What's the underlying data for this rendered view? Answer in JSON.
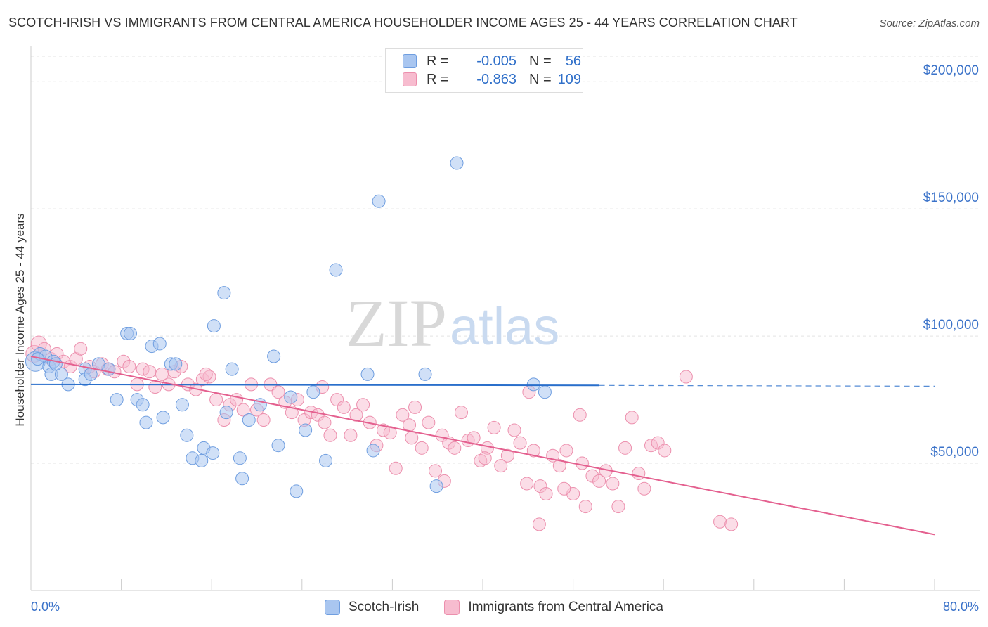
{
  "header": {
    "title": "SCOTCH-IRISH VS IMMIGRANTS FROM CENTRAL AMERICA HOUSEHOLDER INCOME AGES 25 - 44 YEARS CORRELATION CHART",
    "source": "Source: ZipAtlas.com"
  },
  "watermark": {
    "zip": "ZIP",
    "atlas": "atlas"
  },
  "legend": {
    "r_label": "R =",
    "n_label": "N =",
    "rows": [
      {
        "r": "-0.005",
        "n": "56"
      },
      {
        "r": "-0.863",
        "n": "109"
      }
    ]
  },
  "bottom_legend": [
    "Scotch-Irish",
    "Immigrants from Central America"
  ],
  "chart_data": {
    "type": "scatter",
    "ylabel": "Householder Income Ages 25 - 44 years",
    "xlim": [
      0,
      80
    ],
    "ylim": [
      0,
      210000
    ],
    "x_tick_labels": [
      "0.0%",
      "80.0%"
    ],
    "x_tick_values": [
      0,
      8,
      16,
      24,
      32,
      40,
      48,
      56,
      64,
      72,
      80
    ],
    "y_ticks": [
      {
        "value": 50000,
        "label": "$50,000"
      },
      {
        "value": 100000,
        "label": "$100,000"
      },
      {
        "value": 150000,
        "label": "$150,000"
      },
      {
        "value": 200000,
        "label": "$200,000"
      }
    ],
    "grid": true,
    "colors": {
      "series1_fill": "#a9c6f0",
      "series1_stroke": "#6f9ee0",
      "series1_line": "#2a6fcb",
      "series2_fill": "#f7bccf",
      "series2_stroke": "#ec8fad",
      "series2_line": "#e4608f",
      "tick_label": "#3a72c9"
    },
    "series": [
      {
        "name": "Scotch-Irish",
        "trend": {
          "x": [
            0,
            50.3
          ],
          "y": [
            81000,
            80600
          ],
          "dash_to": 80,
          "dash_y": 80300
        },
        "points": [
          [
            0.4,
            90000,
            14
          ],
          [
            0.8,
            93000,
            9
          ],
          [
            1.3,
            92000,
            9
          ],
          [
            1.6,
            88000,
            9
          ],
          [
            1.8,
            85000,
            9
          ],
          [
            2.0,
            90000,
            9
          ],
          [
            2.7,
            85000,
            9
          ],
          [
            3.3,
            81000,
            9
          ],
          [
            4.8,
            87000,
            9
          ],
          [
            4.8,
            83000,
            9
          ],
          [
            5.3,
            85000,
            9
          ],
          [
            6.0,
            89000,
            9
          ],
          [
            6.9,
            87000,
            9
          ],
          [
            7.6,
            75000,
            9
          ],
          [
            8.5,
            101000,
            9
          ],
          [
            8.8,
            101000,
            9
          ],
          [
            9.4,
            75000,
            9
          ],
          [
            9.9,
            73000,
            9
          ],
          [
            10.2,
            66000,
            9
          ],
          [
            10.7,
            96000,
            9
          ],
          [
            11.4,
            97000,
            9
          ],
          [
            11.7,
            68000,
            9
          ],
          [
            12.4,
            89000,
            9
          ],
          [
            12.8,
            89000,
            9
          ],
          [
            13.4,
            73000,
            9
          ],
          [
            13.8,
            61000,
            9
          ],
          [
            14.3,
            52000,
            9
          ],
          [
            15.1,
            51000,
            9
          ],
          [
            15.3,
            56000,
            9
          ],
          [
            16.1,
            54000,
            9
          ],
          [
            16.2,
            104000,
            9
          ],
          [
            17.1,
            117000,
            9
          ],
          [
            17.3,
            70000,
            9
          ],
          [
            17.8,
            87000,
            9
          ],
          [
            18.5,
            52000,
            9
          ],
          [
            18.7,
            44000,
            9
          ],
          [
            19.3,
            67000,
            9
          ],
          [
            20.3,
            73000,
            9
          ],
          [
            21.5,
            92000,
            9
          ],
          [
            21.9,
            57000,
            9
          ],
          [
            23.0,
            76000,
            9
          ],
          [
            23.5,
            39000,
            9
          ],
          [
            24.3,
            63000,
            9
          ],
          [
            25.0,
            78000,
            9
          ],
          [
            26.1,
            51000,
            9
          ],
          [
            27.0,
            126000,
            9
          ],
          [
            29.8,
            85000,
            9
          ],
          [
            30.3,
            55000,
            9
          ],
          [
            30.8,
            153000,
            9
          ],
          [
            34.9,
            85000,
            9
          ],
          [
            35.9,
            41000,
            9
          ],
          [
            37.7,
            168000,
            9
          ],
          [
            44.5,
            81000,
            9
          ],
          [
            45.5,
            78000,
            9
          ],
          [
            0.6,
            91000,
            9
          ],
          [
            2.2,
            89000,
            9
          ]
        ]
      },
      {
        "name": "Immigrants from Central America",
        "trend": {
          "x": [
            0,
            80
          ],
          "y": [
            92000,
            22000
          ]
        },
        "points": [
          [
            0.3,
            93000,
            12
          ],
          [
            0.7,
            97000,
            11
          ],
          [
            1.2,
            95000,
            9
          ],
          [
            1.8,
            91000,
            9
          ],
          [
            2.3,
            93000,
            9
          ],
          [
            2.9,
            90000,
            9
          ],
          [
            3.5,
            88000,
            9
          ],
          [
            4.0,
            91000,
            9
          ],
          [
            4.4,
            95000,
            9
          ],
          [
            5.2,
            88000,
            9
          ],
          [
            5.6,
            86000,
            9
          ],
          [
            6.3,
            89000,
            9
          ],
          [
            6.8,
            87000,
            9
          ],
          [
            7.4,
            86000,
            9
          ],
          [
            8.2,
            90000,
            9
          ],
          [
            8.7,
            88000,
            9
          ],
          [
            9.4,
            81000,
            9
          ],
          [
            9.9,
            87000,
            9
          ],
          [
            10.5,
            86000,
            9
          ],
          [
            11.0,
            80000,
            9
          ],
          [
            11.6,
            85000,
            9
          ],
          [
            12.2,
            81000,
            9
          ],
          [
            12.7,
            86000,
            9
          ],
          [
            13.3,
            88000,
            9
          ],
          [
            13.9,
            81000,
            9
          ],
          [
            14.6,
            79000,
            9
          ],
          [
            15.2,
            83000,
            9
          ],
          [
            15.8,
            84000,
            9
          ],
          [
            16.4,
            75000,
            9
          ],
          [
            17.1,
            67000,
            9
          ],
          [
            17.6,
            73000,
            9
          ],
          [
            18.2,
            75000,
            9
          ],
          [
            18.8,
            71000,
            9
          ],
          [
            19.5,
            81000,
            9
          ],
          [
            20.0,
            71000,
            9
          ],
          [
            20.6,
            67000,
            9
          ],
          [
            21.2,
            81000,
            9
          ],
          [
            21.9,
            78000,
            9
          ],
          [
            22.5,
            74000,
            9
          ],
          [
            23.1,
            70000,
            9
          ],
          [
            23.6,
            75000,
            9
          ],
          [
            24.2,
            67000,
            9
          ],
          [
            24.8,
            70000,
            9
          ],
          [
            25.4,
            69000,
            9
          ],
          [
            26.0,
            66000,
            9
          ],
          [
            26.5,
            61000,
            9
          ],
          [
            27.1,
            75000,
            9
          ],
          [
            27.7,
            72000,
            9
          ],
          [
            28.3,
            61000,
            9
          ],
          [
            28.8,
            69000,
            9
          ],
          [
            29.4,
            73000,
            9
          ],
          [
            30.0,
            66000,
            9
          ],
          [
            30.6,
            57000,
            9
          ],
          [
            31.2,
            63000,
            9
          ],
          [
            31.8,
            62000,
            9
          ],
          [
            32.3,
            48000,
            9
          ],
          [
            32.9,
            69000,
            9
          ],
          [
            33.5,
            65000,
            9
          ],
          [
            34.0,
            72000,
            9
          ],
          [
            34.6,
            56000,
            9
          ],
          [
            35.2,
            66000,
            9
          ],
          [
            35.8,
            47000,
            9
          ],
          [
            36.4,
            61000,
            9
          ],
          [
            37.0,
            58000,
            9
          ],
          [
            37.5,
            56000,
            9
          ],
          [
            38.1,
            70000,
            9
          ],
          [
            38.7,
            59000,
            9
          ],
          [
            39.2,
            60000,
            9
          ],
          [
            39.8,
            51000,
            9
          ],
          [
            40.4,
            56000,
            9
          ],
          [
            41.0,
            64000,
            9
          ],
          [
            41.6,
            49000,
            9
          ],
          [
            42.2,
            53000,
            9
          ],
          [
            42.8,
            63000,
            9
          ],
          [
            43.3,
            58000,
            9
          ],
          [
            43.9,
            42000,
            9
          ],
          [
            44.5,
            55000,
            9
          ],
          [
            45.1,
            41000,
            9
          ],
          [
            45.6,
            38000,
            9
          ],
          [
            46.2,
            53000,
            9
          ],
          [
            46.8,
            49000,
            9
          ],
          [
            47.4,
            55000,
            9
          ],
          [
            48.0,
            38000,
            9
          ],
          [
            48.6,
            69000,
            9
          ],
          [
            49.1,
            33000,
            9
          ],
          [
            49.7,
            45000,
            9
          ],
          [
            50.3,
            43000,
            9
          ],
          [
            50.9,
            47000,
            9
          ],
          [
            51.5,
            42000,
            9
          ],
          [
            52.0,
            33000,
            9
          ],
          [
            52.6,
            56000,
            9
          ],
          [
            53.2,
            68000,
            9
          ],
          [
            53.8,
            46000,
            9
          ],
          [
            54.3,
            40000,
            9
          ],
          [
            54.9,
            57000,
            9
          ],
          [
            55.5,
            58000,
            9
          ],
          [
            56.1,
            55000,
            9
          ],
          [
            58.0,
            84000,
            9
          ],
          [
            61.0,
            27000,
            9
          ],
          [
            62.0,
            26000,
            9
          ],
          [
            15.5,
            85000,
            9
          ],
          [
            25.8,
            80000,
            9
          ],
          [
            33.7,
            60000,
            9
          ],
          [
            40.2,
            52000,
            9
          ],
          [
            44.1,
            78000,
            9
          ],
          [
            47.2,
            40000,
            9
          ],
          [
            36.6,
            43000,
            9
          ],
          [
            48.8,
            50000,
            9
          ],
          [
            45.0,
            26000,
            9
          ]
        ]
      }
    ]
  }
}
